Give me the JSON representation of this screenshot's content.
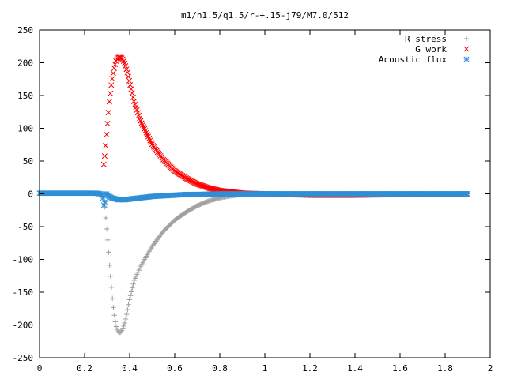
{
  "chart_data": {
    "type": "scatter",
    "title": "m1/n1.5/q1.5/r-+.15-j79/M7.0/512",
    "xlabel": "",
    "ylabel": "",
    "xlim": [
      0,
      2
    ],
    "ylim": [
      -250,
      250
    ],
    "xticks": [
      "0",
      "0.2",
      "0.4",
      "0.6",
      "0.8",
      "1",
      "1.2",
      "1.4",
      "1.6",
      "1.8",
      "2"
    ],
    "yticks": [
      "250",
      "200",
      "150",
      "100",
      "50",
      "0",
      "-50",
      "-100",
      "-150",
      "-200",
      "-250"
    ],
    "grid": false,
    "legend_position": "top-right",
    "series": [
      {
        "name": "R stress",
        "marker": "plus",
        "color": "#a0a0a0",
        "x": [
          0.29,
          0.295,
          0.3,
          0.305,
          0.31,
          0.315,
          0.32,
          0.325,
          0.33,
          0.335,
          0.34,
          0.345,
          0.35,
          0.355,
          0.36,
          0.365,
          0.37,
          0.38,
          0.39,
          0.4,
          0.42,
          0.45,
          0.5,
          0.55,
          0.6,
          0.65,
          0.7,
          0.75,
          0.8,
          0.85,
          0.9,
          1.0,
          1.2,
          1.4,
          1.6,
          1.8,
          1.9
        ],
        "y": [
          -20,
          -40,
          -60,
          -80,
          -105,
          -125,
          -145,
          -165,
          -180,
          -193,
          -202,
          -208,
          -211,
          -212,
          -211,
          -209,
          -206,
          -195,
          -178,
          -160,
          -132,
          -110,
          -80,
          -57,
          -40,
          -28,
          -18,
          -11,
          -6,
          -3,
          -1,
          0,
          0,
          0,
          0,
          0,
          0
        ]
      },
      {
        "name": "G work",
        "marker": "cross",
        "color": "#ff0000",
        "x": [
          0.285,
          0.29,
          0.295,
          0.3,
          0.305,
          0.31,
          0.315,
          0.32,
          0.325,
          0.33,
          0.335,
          0.34,
          0.345,
          0.35,
          0.355,
          0.36,
          0.365,
          0.37,
          0.38,
          0.39,
          0.4,
          0.42,
          0.45,
          0.5,
          0.55,
          0.6,
          0.65,
          0.7,
          0.75,
          0.8,
          0.85,
          0.9,
          1.0,
          1.2,
          1.4,
          1.6,
          1.8,
          1.9
        ],
        "y": [
          45,
          60,
          80,
          100,
          120,
          140,
          155,
          170,
          180,
          190,
          197,
          203,
          206,
          208,
          208,
          208,
          207,
          205,
          197,
          185,
          170,
          140,
          110,
          75,
          52,
          35,
          24,
          15,
          9,
          5,
          3,
          1,
          0,
          -2,
          -2,
          -1,
          -1,
          0
        ]
      },
      {
        "name": "Acoustic flux",
        "marker": "asterisk",
        "color": "#2e8fd6",
        "x": [
          0,
          0.05,
          0.1,
          0.15,
          0.2,
          0.25,
          0.27,
          0.28,
          0.285,
          0.29,
          0.295,
          0.3,
          0.31,
          0.32,
          0.33,
          0.34,
          0.35,
          0.36,
          0.38,
          0.4,
          0.45,
          0.5,
          0.55,
          0.6,
          0.65,
          0.7,
          0.8,
          0.9,
          1.0,
          1.2,
          1.4,
          1.6,
          1.8,
          1.9
        ],
        "y": [
          1,
          1,
          1,
          1,
          1,
          1,
          0,
          -2,
          -18,
          -12,
          3,
          -2,
          -4,
          -6,
          -7,
          -8,
          -9,
          -9,
          -9,
          -8,
          -6,
          -4,
          -3,
          -2,
          -1,
          -1,
          0,
          0,
          0,
          0,
          0,
          0,
          0,
          0
        ]
      }
    ]
  }
}
